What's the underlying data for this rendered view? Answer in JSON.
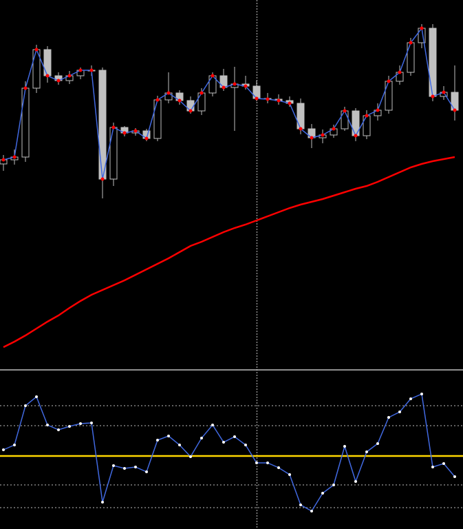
{
  "chart_data": [
    {
      "type": "candlestick",
      "ylim": [
        0,
        535
      ],
      "open": [
        297,
        303,
        307,
        407,
        463,
        425,
        418,
        425,
        433,
        433,
        275,
        350,
        342,
        345,
        334,
        390,
        400,
        389,
        374,
        400,
        425,
        408,
        413,
        410,
        392,
        391,
        389,
        385,
        348,
        335,
        339,
        348,
        374,
        338,
        367,
        375,
        417,
        430,
        473,
        494,
        395,
        401
      ],
      "high": [
        310,
        318,
        417,
        470,
        468,
        430,
        432,
        437,
        440,
        437,
        357,
        352,
        349,
        348,
        396,
        430,
        404,
        395,
        407,
        430,
        435,
        438,
        425,
        418,
        400,
        398,
        395,
        392,
        355,
        347,
        354,
        380,
        378,
        375,
        385,
        425,
        440,
        480,
        500,
        500,
        410,
        440
      ],
      "low": [
        287,
        296,
        300,
        400,
        415,
        412,
        413,
        420,
        425,
        247,
        265,
        337,
        338,
        330,
        330,
        385,
        383,
        370,
        368,
        395,
        403,
        345,
        405,
        388,
        385,
        383,
        380,
        340,
        320,
        327,
        335,
        345,
        330,
        333,
        360,
        370,
        412,
        425,
        465,
        388,
        390,
        360
      ],
      "close": [
        303,
        307,
        407,
        463,
        425,
        418,
        425,
        433,
        433,
        275,
        350,
        342,
        345,
        334,
        390,
        400,
        389,
        374,
        400,
        425,
        408,
        413,
        410,
        392,
        391,
        389,
        385,
        348,
        335,
        339,
        348,
        374,
        338,
        367,
        375,
        417,
        430,
        473,
        494,
        395,
        401,
        375
      ],
      "up_color": "#000000",
      "down_color": "#c0c0c0",
      "wick_color": "#c0c0c0",
      "close_line_color": "#4169e1",
      "close_dot_color": "#ff0000",
      "series": [
        {
          "color": "#ff0000",
          "values": [
            31,
            39,
            48,
            58,
            68,
            77,
            88,
            98,
            107,
            114,
            121,
            128,
            136,
            144,
            152,
            160,
            169,
            178,
            184,
            191,
            198,
            204,
            209,
            215,
            221,
            227,
            233,
            238,
            242,
            246,
            251,
            256,
            261,
            265,
            271,
            278,
            285,
            292,
            297,
            301,
            304,
            307
          ]
        }
      ]
    },
    {
      "type": "line",
      "ylim": [
        0,
        230
      ],
      "yticks": [
        31,
        64,
        150,
        179
      ],
      "grid": true,
      "level": 106,
      "level_color": "#ffd700",
      "series": [
        {
          "color": "#4169e1",
          "values": [
            115,
            122,
            179,
            192,
            151,
            144,
            149,
            153,
            154,
            39,
            92,
            88,
            90,
            83,
            129,
            135,
            122,
            105,
            132,
            151,
            126,
            134,
            122,
            96,
            96,
            89,
            79,
            35,
            26,
            52,
            64,
            120,
            69,
            112,
            124,
            162,
            170,
            189,
            196,
            90,
            95,
            76
          ]
        }
      ]
    }
  ]
}
